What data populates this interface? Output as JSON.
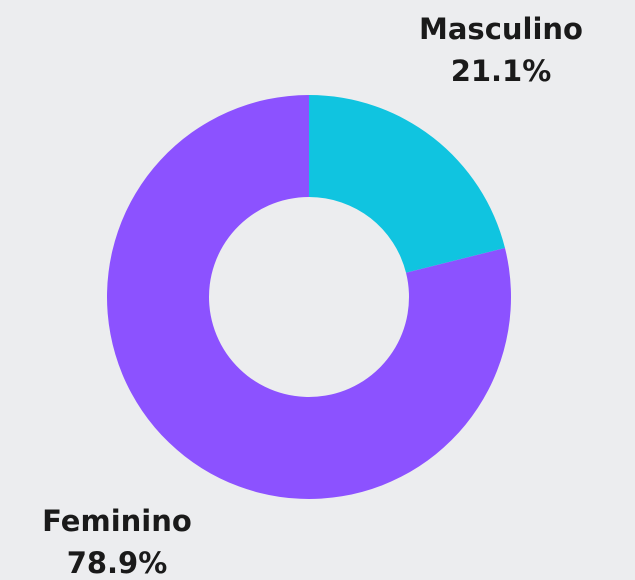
{
  "chart_data": {
    "type": "donut",
    "categories": [
      "Masculino",
      "Feminino"
    ],
    "values": [
      21.1,
      78.9
    ],
    "value_labels": [
      "21.1%",
      "78.9%"
    ],
    "colors": [
      "#10c4e0",
      "#8c52ff"
    ]
  }
}
